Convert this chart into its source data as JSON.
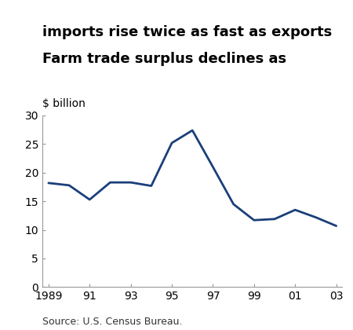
{
  "title_line1": "Farm trade surplus declines as",
  "title_line2": "imports rise twice as fast as exports",
  "ylabel": "$ billion",
  "source": "Source: U.S. Census Bureau.",
  "line_color": "#1a3f7a",
  "line_width": 2.0,
  "years": [
    1989,
    1990,
    1991,
    1992,
    1993,
    1994,
    1995,
    1996,
    1997,
    1998,
    1999,
    2000,
    2001,
    2002,
    2003
  ],
  "values": [
    18.2,
    17.8,
    15.3,
    18.3,
    18.3,
    17.7,
    25.2,
    27.4,
    21.0,
    14.5,
    11.7,
    11.9,
    13.5,
    12.2,
    10.7
  ],
  "xlim": [
    1989,
    2003
  ],
  "ylim": [
    0,
    30
  ],
  "yticks": [
    0,
    5,
    10,
    15,
    20,
    25,
    30
  ],
  "xtick_labels": [
    "1989",
    "91",
    "93",
    "95",
    "97",
    "99",
    "01",
    "03"
  ],
  "xtick_positions": [
    1989,
    1991,
    1993,
    1995,
    1997,
    1999,
    2001,
    2003
  ],
  "title_fontsize": 13.0,
  "label_fontsize": 10,
  "tick_fontsize": 10,
  "source_fontsize": 9,
  "background_color": "#ffffff"
}
